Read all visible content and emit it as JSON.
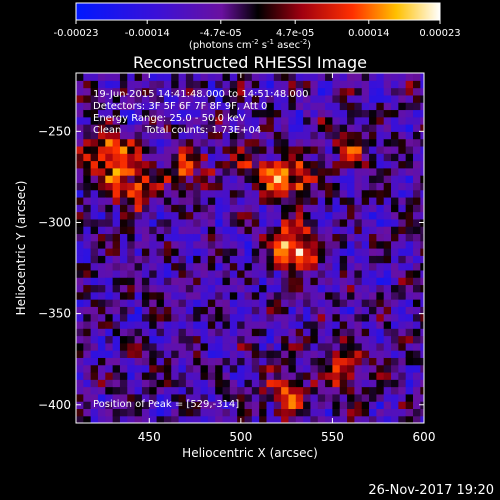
{
  "chart_data": {
    "type": "heatmap",
    "title": "Reconstructed RHESSI Image",
    "xlabel": "Heliocentric X (arcsec)",
    "ylabel": "Heliocentric Y (arcsec)",
    "xlim": [
      410,
      600
    ],
    "ylim": [
      -410,
      -218
    ],
    "x_ticks": [
      450,
      500,
      550,
      600
    ],
    "y_ticks": [
      -250,
      -300,
      -350,
      -400
    ],
    "x_tick_labels": [
      "450",
      "500",
      "550",
      "600"
    ],
    "y_tick_labels": [
      "−250",
      "−300",
      "−350",
      "−400"
    ],
    "colorbar": {
      "range": [
        -0.00023,
        0.00023
      ],
      "tick_values": [
        -0.00023,
        -0.00014,
        -4.7e-05,
        4.7e-05,
        0.00014,
        0.00023
      ],
      "tick_labels": [
        "-0.00023",
        "-0.00014",
        "-4.7e-05",
        "4.7e-05",
        "0.00014",
        "0.00023"
      ],
      "units_label": "(photons cm",
      "units_exp1": "-2",
      "units_mid": " s",
      "units_exp2": "-1",
      "units_mid2": " asec",
      "units_exp3": "-2",
      "units_close": ")",
      "colormap": "blue-purple-red-yellow-white"
    },
    "annotations": {
      "time": "19-Jun-2015 14:41:48.000 to 14:51:48.000",
      "detectors": "Detectors: 3F 5F 6F 7F 8F 9F, Att 0",
      "energy": "Energy Range: 25.0 - 50.0 keV",
      "clean": "Clean",
      "counts": "Total counts: 1.73E+04",
      "peak": "Position of Peak = [529,-314]"
    },
    "sources": [
      {
        "x": 530,
        "y": -314,
        "peak": 0.00023
      },
      {
        "x": 527,
        "y": -276,
        "peak": 0.00018
      },
      {
        "x": 428,
        "y": -263,
        "peak": 0.00018
      },
      {
        "x": 440,
        "y": -280,
        "peak": 0.00016
      },
      {
        "x": 470,
        "y": -270,
        "peak": 0.00012
      },
      {
        "x": 555,
        "y": -380,
        "peak": 0.00014
      },
      {
        "x": 525,
        "y": -395,
        "peak": 0.00013
      },
      {
        "x": 560,
        "y": -258,
        "peak": 0.0001
      },
      {
        "x": 505,
        "y": -268,
        "peak": 9e-05
      }
    ],
    "date_stamp": "26-Nov-2017 19:20"
  }
}
